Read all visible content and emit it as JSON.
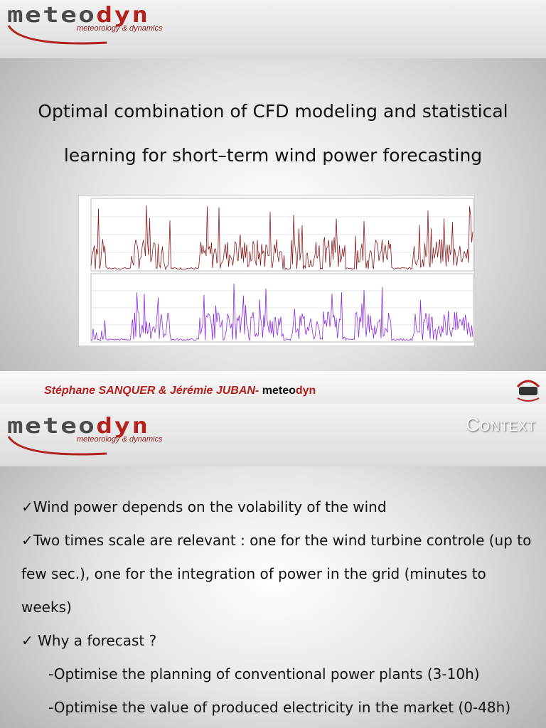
{
  "slide1": {
    "logo": {
      "brand_a": "meteo",
      "brand_b": "dyn",
      "tagline": "meteorology & dynamics"
    },
    "title": [
      "Optimal combination of CFD modeling and statistical",
      "learning for short–term wind power forecasting"
    ],
    "authors": "Stéphane SANQUER & Jérémie JUBAN-",
    "brand_a": "meteo",
    "brand_b": "dyn"
  },
  "slide2": {
    "logo": {
      "brand_a": "meteo",
      "brand_b": "dyn",
      "tagline": "meteorology & dynamics"
    },
    "heading": "CONTEXT",
    "bullets": [
      "✓Wind power depends on the volability of the wind",
      "✓Two times scale are relevant : one for the wind turbine controle (up to few sec.), one for the integration of power in the grid (minutes to weeks)",
      "✓ Why a forecast ?",
      "-Optimise the planning of conventional power plants (3-10h)",
      "-Optimise the value of produced electricity in the market (0-48h)"
    ]
  }
}
